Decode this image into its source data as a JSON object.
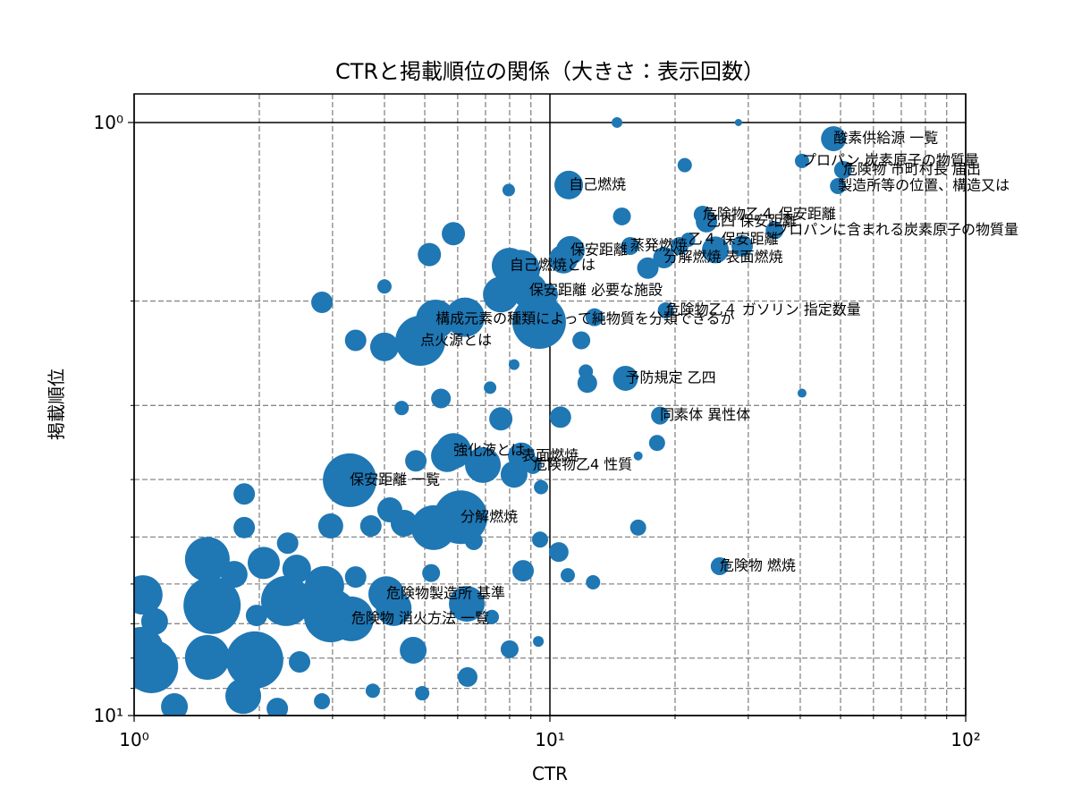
{
  "chart_data": {
    "type": "scatter",
    "title": "CTRと掲載順位の関係（大きさ：表示回数）",
    "x_label": "CTR",
    "y_label": "掲載順位",
    "color": "#1f77b4",
    "log_x": true,
    "log_y": true,
    "y_inverted": true,
    "grid": true,
    "xlim": [
      1,
      100
    ],
    "ylim": [
      0.895,
      10
    ],
    "xticks": [
      {
        "value": 1,
        "label": "10⁰"
      },
      {
        "value": 10,
        "label": "10¹"
      },
      {
        "value": 100,
        "label": "10²"
      }
    ],
    "yticks": [
      {
        "value": 1,
        "label": "10⁰"
      },
      {
        "value": 10,
        "label": "10¹"
      }
    ],
    "xticks_minor": [
      2,
      3,
      4,
      5,
      6,
      7,
      8,
      9,
      20,
      30,
      40,
      50,
      60,
      70,
      80,
      90
    ],
    "yticks_minor": [
      2,
      3,
      4,
      5,
      6,
      7,
      8,
      9
    ],
    "x": [
      14.5,
      28.4,
      21.1,
      7.96,
      14.9,
      5.86,
      5.13,
      4.0,
      2.83,
      3.41,
      4.0,
      7.18,
      8.2,
      5.47,
      4.4,
      7.62,
      10.6,
      12.2,
      12.3,
      18.1,
      40.4,
      16.3,
      4.76,
      5.66,
      6.9,
      8.2,
      9.52,
      1.84,
      2.97,
      1.84,
      3.71,
      4.12,
      4.46,
      5.25,
      6.56,
      9.47,
      10.5,
      2.34,
      1.5,
      1.74,
      2.05,
      2.46,
      2.87,
      3.41,
      5.18,
      8.62,
      11.04,
      12.7,
      16.3,
      1.05,
      1.54,
      1.12,
      1.97,
      2.32,
      2.97,
      4.21,
      6.31,
      7.25,
      4.69,
      8.0,
      9.38,
      1.1,
      1.5,
      1.95,
      2.5,
      1.83,
      3.75,
      4.93,
      6.34,
      2.83,
      1.25,
      2.21,
      1.04,
      9.85,
      12.8,
      11.9,
      9.42,
      7.62,
      6.25,
      8.49,
      10.77,
      17.2,
      20.5,
      25.0,
      29.0,
      48.1,
      40.4,
      50.7,
      49.3,
      11.1,
      23.3,
      23.8,
      34.7,
      21.5,
      15.6,
      11.2,
      18.8,
      8.0,
      8.92,
      19.0,
      5.31,
      4.88,
      15.2,
      18.4,
      5.86,
      8.54,
      9.1,
      3.3,
      6.1,
      25.6,
      4.04,
      3.33
    ],
    "y": [
      1.0,
      1.0,
      1.18,
      1.3,
      1.44,
      1.54,
      1.67,
      1.89,
      2.01,
      2.33,
      2.39,
      2.8,
      2.56,
      2.92,
      3.03,
      3.16,
      3.14,
      2.63,
      2.75,
      3.47,
      2.86,
      3.65,
      3.72,
      3.65,
      3.78,
      3.92,
      4.12,
      4.23,
      4.79,
      4.82,
      4.79,
      4.5,
      4.74,
      4.82,
      5.08,
      5.05,
      5.3,
      5.12,
      5.45,
      5.78,
      5.53,
      5.66,
      6.04,
      5.84,
      5.75,
      5.7,
      5.8,
      5.96,
      4.82,
      6.26,
      6.52,
      6.94,
      6.78,
      6.41,
      6.78,
      6.59,
      6.48,
      6.82,
      7.76,
      7.73,
      7.5,
      8.26,
      7.98,
      8.06,
      8.12,
      9.27,
      9.08,
      9.17,
      8.61,
      9.46,
      9.66,
      9.73,
      7.73,
      1.95,
      2.13,
      2.33,
      2.17,
      1.95,
      2.13,
      1.77,
      1.7,
      1.76,
      1.615,
      1.64,
      1.615,
      1.065,
      1.161,
      1.202,
      1.28,
      1.275,
      1.43,
      1.47,
      1.52,
      1.577,
      1.615,
      1.643,
      1.69,
      1.743,
      1.921,
      2.074,
      2.147,
      2.334,
      2.7,
      3.12,
      3.58,
      3.65,
      3.78,
      4.01,
      4.63,
      5.6,
      6.24,
      6.87
    ],
    "sizes": [
      36,
      16,
      64,
      49,
      100,
      169,
      169,
      64,
      144,
      144,
      256,
      49,
      36,
      121,
      64,
      169,
      144,
      64,
      121,
      81,
      25,
      25,
      144,
      324,
      400,
      225,
      64,
      144,
      196,
      144,
      144,
      196,
      225,
      625,
      100,
      81,
      121,
      144,
      625,
      225,
      324,
      256,
      484,
      144,
      100,
      144,
      64,
      64,
      81,
      484,
      1024,
      225,
      144,
      784,
      900,
      400,
      400,
      64,
      225,
      100,
      36,
      900,
      625,
      1024,
      144,
      400,
      64,
      64,
      121,
      81,
      225,
      144,
      625,
      144,
      100,
      100,
      900,
      400,
      484,
      484,
      256,
      144,
      100,
      225,
      144,
      196,
      64,
      100,
      81,
      256,
      100,
      144,
      100,
      64,
      100,
      256,
      144,
      400,
      400,
      81,
      484,
      784,
      196,
      100,
      400,
      225,
      100,
      900,
      900,
      100,
      400,
      625
    ],
    "labels": [
      null,
      null,
      null,
      null,
      null,
      null,
      null,
      null,
      null,
      null,
      null,
      null,
      null,
      null,
      null,
      null,
      null,
      null,
      null,
      null,
      null,
      null,
      null,
      null,
      null,
      null,
      null,
      null,
      null,
      null,
      null,
      null,
      null,
      null,
      null,
      null,
      null,
      null,
      null,
      null,
      null,
      null,
      null,
      null,
      null,
      null,
      null,
      null,
      null,
      null,
      null,
      null,
      null,
      null,
      null,
      null,
      null,
      null,
      null,
      null,
      null,
      null,
      null,
      null,
      null,
      null,
      null,
      null,
      null,
      null,
      null,
      null,
      null,
      null,
      null,
      null,
      null,
      null,
      null,
      null,
      null,
      null,
      null,
      null,
      null,
      "酸素供給源 一覧",
      "プロパン 炭素原子の物質量",
      "危険物 市町村長 届出",
      "製造所等の位置、構造又は",
      "自己燃焼",
      "危険物乙４ 保安距離",
      "乙四 保安距離",
      "プロパンに含まれる炭素原子の物質量",
      "乙４ 保安距離",
      "蒸発燃焼",
      "保安距離",
      "分解燃焼 表面燃焼",
      "自己燃焼とは",
      "保安距離 必要な施設",
      "危険物乙４ ガソリン 指定数量",
      "構成元素の種類によって純物質を分類できるか",
      "点火源とは",
      "予防規定 乙四",
      "同素体 異性体",
      "強化液とは",
      "表面燃焼",
      "危険物乙4 性質",
      "保安距離 一覧",
      "分解燃焼",
      "危険物 燃焼",
      "危険物製造所 基準",
      "危険物 消火方法 一覧"
    ]
  }
}
